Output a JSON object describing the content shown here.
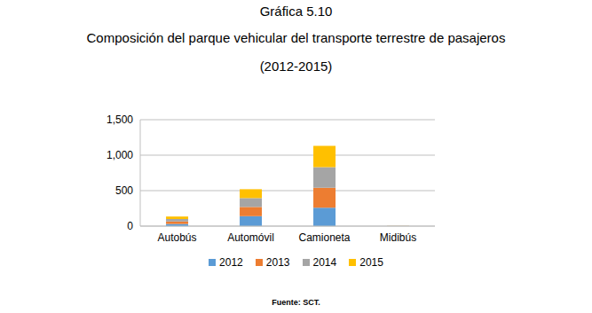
{
  "chart_data": {
    "type": "bar",
    "stacked": true,
    "title": "Gráfica 5.10",
    "subtitle": "Composición del parque vehicular del transporte terrestre de pasajeros",
    "period": "(2012-2015)",
    "source": "Fuente: SCT.",
    "categories": [
      "Autobús",
      "Automóvil",
      "Camioneta",
      "Midibús"
    ],
    "series": [
      {
        "name": "2012",
        "color": "#5B9BD5",
        "values": [
          30,
          140,
          260,
          1
        ]
      },
      {
        "name": "2013",
        "color": "#ED7D31",
        "values": [
          35,
          130,
          280,
          1
        ]
      },
      {
        "name": "2014",
        "color": "#A5A5A5",
        "values": [
          35,
          125,
          290,
          1
        ]
      },
      {
        "name": "2015",
        "color": "#FFC000",
        "values": [
          35,
          125,
          300,
          1
        ]
      }
    ],
    "ylim": [
      0,
      1500
    ],
    "yticks": [
      0,
      500,
      {
        "value": 1000,
        "label": "1,000"
      },
      {
        "value": 1500,
        "label": "1,500"
      }
    ],
    "grid": true,
    "legend": "bottom"
  }
}
